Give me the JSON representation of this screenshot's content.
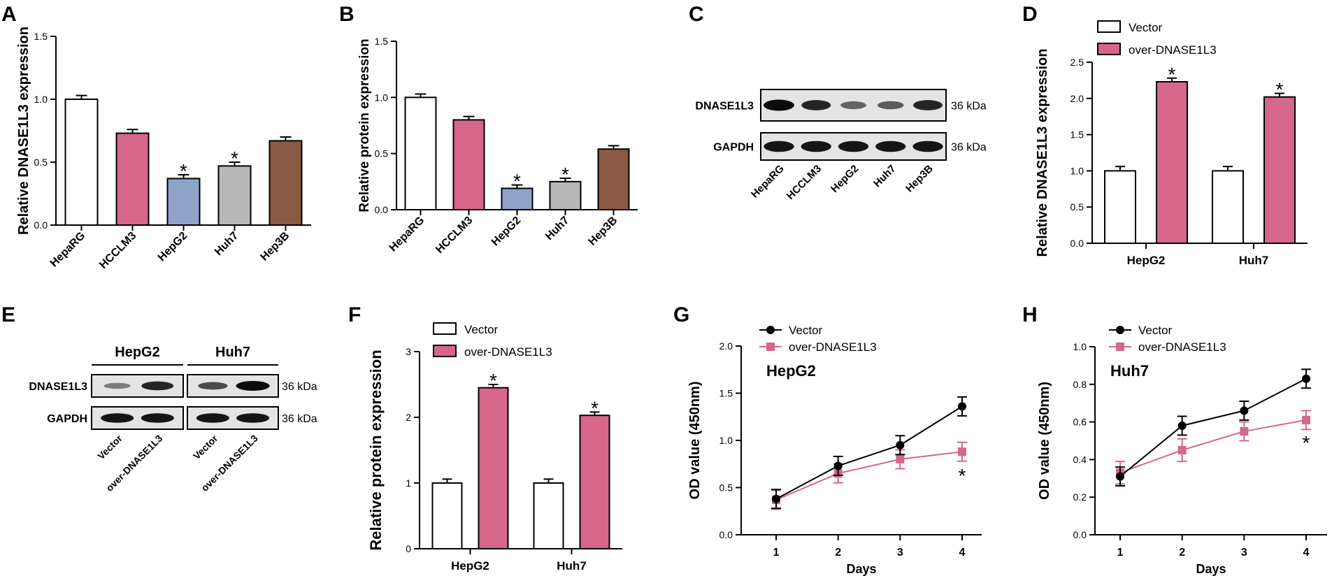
{
  "colors": {
    "white": "#ffffff",
    "pink": "#d6668a",
    "blue": "#8ea3c9",
    "gray": "#b8b8b8",
    "brown": "#8a5a45",
    "black": "#000000"
  },
  "chart_data": [
    {
      "panel": "A",
      "type": "bar",
      "ylabel": "Relative DNASE1L3 expression",
      "ylim": [
        0,
        1.5
      ],
      "yticks": [
        "0.0",
        "0.5",
        "1.0",
        "1.5"
      ],
      "categories": [
        "HepaRG",
        "HCCLM3",
        "HepG2",
        "Huh7",
        "Hep3B"
      ],
      "values": [
        1.0,
        0.73,
        0.37,
        0.47,
        0.67
      ],
      "errors": [
        0.03,
        0.03,
        0.03,
        0.03,
        0.03
      ],
      "colors": [
        "#ffffff",
        "#d6668a",
        "#8ea3c9",
        "#b8b8b8",
        "#8a5a45"
      ],
      "stars": [
        "",
        "",
        "*",
        "*",
        ""
      ]
    },
    {
      "panel": "B",
      "type": "bar",
      "ylabel": "Relative protein expression",
      "ylim": [
        0,
        1.5
      ],
      "yticks": [
        "0.0",
        "0.5",
        "1.0",
        "1.5"
      ],
      "categories": [
        "HepaRG",
        "HCCLM3",
        "HepG2",
        "Huh7",
        "Hep3B"
      ],
      "values": [
        1.0,
        0.8,
        0.19,
        0.25,
        0.54
      ],
      "errors": [
        0.03,
        0.03,
        0.03,
        0.03,
        0.03
      ],
      "colors": [
        "#ffffff",
        "#d6668a",
        "#8ea3c9",
        "#b8b8b8",
        "#8a5a45"
      ],
      "stars": [
        "",
        "",
        "*",
        "*",
        ""
      ]
    },
    {
      "panel": "D",
      "type": "bar",
      "ylabel": "Relative DNASE1L3 expression",
      "ylim": [
        0,
        2.5
      ],
      "yticks": [
        "0.0",
        "0.5",
        "1.0",
        "1.5",
        "2.0",
        "2.5"
      ],
      "categories": [
        "HepG2",
        "Huh7"
      ],
      "legend": [
        "Vector",
        "over-DNASE1L3"
      ],
      "series": [
        {
          "name": "Vector",
          "values": [
            1.0,
            1.0
          ],
          "errors": [
            0.06,
            0.06
          ]
        },
        {
          "name": "over-DNASE1L3",
          "values": [
            2.23,
            2.02
          ],
          "errors": [
            0.05,
            0.05
          ]
        }
      ],
      "stars": [
        "*",
        "*"
      ]
    },
    {
      "panel": "F",
      "type": "bar",
      "ylabel": "Relative protein expression",
      "ylim": [
        0,
        3
      ],
      "yticks": [
        "0",
        "1",
        "2",
        "3"
      ],
      "categories": [
        "HepG2",
        "Huh7"
      ],
      "legend": [
        "Vector",
        "over-DNASE1L3"
      ],
      "series": [
        {
          "name": "Vector",
          "values": [
            1.0,
            1.0
          ],
          "errors": [
            0.06,
            0.06
          ]
        },
        {
          "name": "over-DNASE1L3",
          "values": [
            2.45,
            2.03
          ],
          "errors": [
            0.05,
            0.05
          ]
        }
      ],
      "stars": [
        "*",
        "*"
      ]
    },
    {
      "panel": "G",
      "type": "line",
      "title": "HepG2",
      "xlabel": "Days",
      "ylabel": "OD value (450nm)",
      "x": [
        1,
        2,
        3,
        4
      ],
      "ylim": [
        0,
        2.0
      ],
      "yticks": [
        "0.0",
        "0.5",
        "1.0",
        "1.5",
        "2.0"
      ],
      "xticks": [
        "1",
        "2",
        "3",
        "4"
      ],
      "legend": [
        "Vector",
        "over-DNASE1L3"
      ],
      "series": [
        {
          "name": "Vector",
          "values": [
            0.38,
            0.73,
            0.95,
            1.36
          ],
          "errors": [
            0.1,
            0.1,
            0.1,
            0.1
          ]
        },
        {
          "name": "over-DNASE1L3",
          "values": [
            0.37,
            0.65,
            0.8,
            0.88
          ],
          "errors": [
            0.1,
            0.1,
            0.1,
            0.1
          ]
        }
      ],
      "star": "*"
    },
    {
      "panel": "H",
      "type": "line",
      "title": "Huh7",
      "xlabel": "Days",
      "ylabel": "OD value (450nm)",
      "x": [
        1,
        2,
        3,
        4
      ],
      "ylim": [
        0,
        1.0
      ],
      "yticks": [
        "0.0",
        "0.2",
        "0.4",
        "0.6",
        "0.8",
        "1.0"
      ],
      "xticks": [
        "1",
        "2",
        "3",
        "4"
      ],
      "legend": [
        "Vector",
        "over-DNASE1L3"
      ],
      "series": [
        {
          "name": "Vector",
          "values": [
            0.31,
            0.58,
            0.66,
            0.83
          ],
          "errors": [
            0.05,
            0.05,
            0.05,
            0.05
          ]
        },
        {
          "name": "over-DNASE1L3",
          "values": [
            0.33,
            0.45,
            0.55,
            0.61
          ],
          "errors": [
            0.06,
            0.06,
            0.05,
            0.05
          ]
        }
      ],
      "star": "*"
    }
  ],
  "panels": {
    "A": "A",
    "B": "B",
    "C": "C",
    "D": "D",
    "E": "E",
    "F": "F",
    "G": "G",
    "H": "H"
  },
  "blotC": {
    "rows": [
      "DNASE1L3",
      "GAPDH"
    ],
    "kda": [
      "36 kDa",
      "36 kDa"
    ],
    "lanes": [
      "HepaRG",
      "HCCLM3",
      "HepG2",
      "Huh7",
      "Hep3B"
    ],
    "intensity": [
      [
        1.0,
        0.85,
        0.45,
        0.5,
        0.85
      ],
      [
        0.95,
        0.95,
        0.95,
        0.95,
        0.95
      ]
    ]
  },
  "blotE": {
    "groups": [
      "HepG2",
      "Huh7"
    ],
    "rows": [
      "DNASE1L3",
      "GAPDH"
    ],
    "kda": [
      "36 kDa",
      "36 kDa"
    ],
    "lanes": [
      "Vector",
      "over-DNASE1L3",
      "Vector",
      "over-DNASE1L3"
    ],
    "intensity": [
      [
        0.3,
        0.85,
        0.6,
        1.0
      ],
      [
        0.95,
        0.95,
        0.95,
        0.95
      ]
    ]
  }
}
